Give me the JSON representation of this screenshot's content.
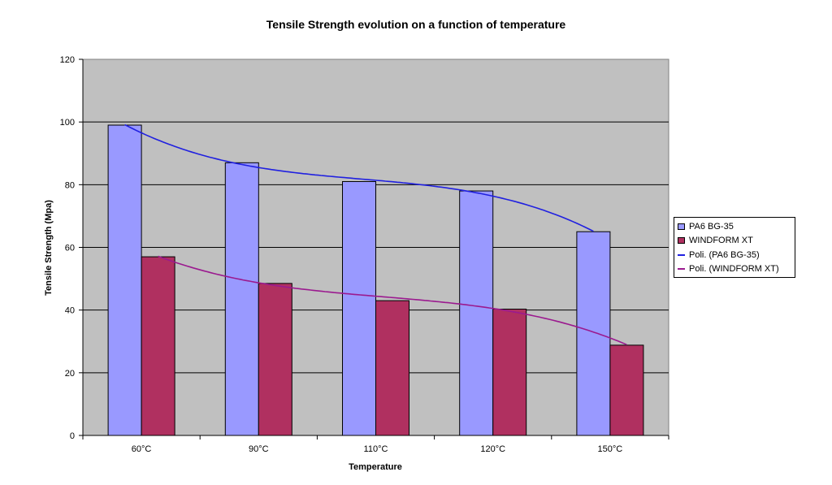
{
  "chart_data": {
    "type": "bar",
    "title": "Tensile Strength evolution on a function of temperature",
    "xlabel": "Temperature",
    "ylabel": "Tensile Strength (Mpa)",
    "categories": [
      "60°C",
      "90°C",
      "110°C",
      "120°C",
      "150°C"
    ],
    "ylim": [
      0,
      120
    ],
    "yticks": [
      0,
      20,
      40,
      60,
      80,
      100,
      120
    ],
    "grid": true,
    "legend_position": "right",
    "series": [
      {
        "name": "PA6 BG-35",
        "values": [
          99,
          87,
          81,
          78,
          65
        ],
        "color": "#9999FF"
      },
      {
        "name": "WINDFORM XT",
        "values": [
          57,
          48.5,
          43,
          40.3,
          28.8
        ],
        "color": "#B03060"
      }
    ],
    "trendlines": [
      {
        "name": "Poli. (PA6 BG-35)",
        "type": "polynomial",
        "series": "PA6 BG-35",
        "color": "#2020E0"
      },
      {
        "name": "Poli. (WINDFORM XT)",
        "type": "polynomial",
        "series": "WINDFORM XT",
        "color": "#9B1A8F"
      }
    ],
    "plot_background": "#C0C0C0"
  }
}
